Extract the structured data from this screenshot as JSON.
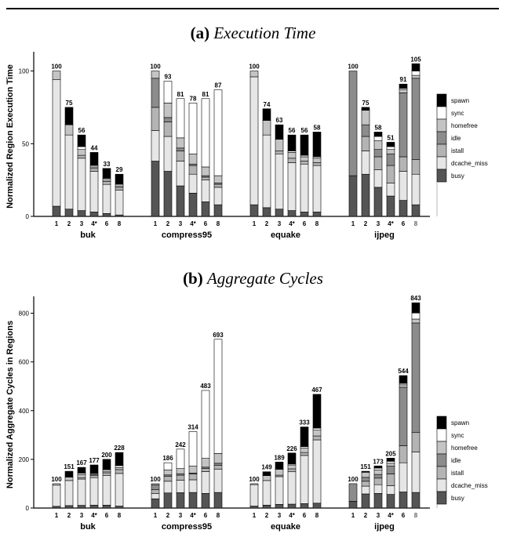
{
  "figure": {
    "panel_a": {
      "label": "(a)",
      "title": "Execution Time"
    },
    "panel_b": {
      "label": "(b)",
      "title": "Aggregate Cycles"
    }
  },
  "colors": {
    "spawn": "#000000",
    "sync": "#ffffff",
    "homefree": "#c4c4c4",
    "idle": "#8c8c8c",
    "istall": "#b4b4b4",
    "dcache_miss": "#e6e6e6",
    "busy": "#555555"
  },
  "chart_data": [
    {
      "type": "bar",
      "stacked": true,
      "title": "(a) Execution Time",
      "xlabel": "",
      "ylabel": "Normalized Region Execution Time",
      "ylim": [
        0,
        110
      ],
      "yticks": [
        0,
        50,
        100
      ],
      "legend": [
        "spawn",
        "sync",
        "homefree",
        "idle",
        "istall",
        "dcache_miss",
        "busy"
      ],
      "legend_position": "right",
      "groups": [
        {
          "name": "buk",
          "bars": [
            {
              "x": "1",
              "total": 100,
              "segments": {
                "busy": 7,
                "dcache_miss": 87,
                "istall": 0,
                "idle": 0,
                "homefree": 6,
                "sync": 0,
                "spawn": 0
              }
            },
            {
              "x": "2",
              "total": 75,
              "segments": {
                "busy": 5,
                "dcache_miss": 51,
                "istall": 0,
                "idle": 0,
                "homefree": 7,
                "sync": 0,
                "spawn": 12
              }
            },
            {
              "x": "3",
              "total": 56,
              "segments": {
                "busy": 4,
                "dcache_miss": 36,
                "istall": 2,
                "idle": 0,
                "homefree": 4,
                "sync": 2,
                "spawn": 8
              }
            },
            {
              "x": "4*",
              "total": 44,
              "segments": {
                "busy": 3,
                "dcache_miss": 28,
                "istall": 2,
                "idle": 0,
                "homefree": 1,
                "sync": 1,
                "spawn": 9
              }
            },
            {
              "x": "6",
              "total": 33,
              "segments": {
                "busy": 2,
                "dcache_miss": 20,
                "istall": 2,
                "idle": 0,
                "homefree": 1,
                "sync": 1,
                "spawn": 7
              }
            },
            {
              "x": "8",
              "total": 29,
              "segments": {
                "busy": 1,
                "dcache_miss": 17,
                "istall": 2,
                "idle": 0,
                "homefree": 1,
                "sync": 1,
                "spawn": 7
              }
            }
          ]
        },
        {
          "name": "compress95",
          "bars": [
            {
              "x": "1",
              "total": 100,
              "segments": {
                "busy": 38,
                "dcache_miss": 21,
                "istall": 16,
                "idle": 20,
                "homefree": 5,
                "sync": 0,
                "spawn": 0
              }
            },
            {
              "x": "2",
              "total": 93,
              "segments": {
                "busy": 31,
                "dcache_miss": 24,
                "istall": 10,
                "idle": 3,
                "homefree": 10,
                "sync": 15,
                "spawn": 0
              }
            },
            {
              "x": "3",
              "total": 81,
              "segments": {
                "busy": 21,
                "dcache_miss": 17,
                "istall": 7,
                "idle": 2,
                "homefree": 7,
                "sync": 27,
                "spawn": 0
              }
            },
            {
              "x": "4*",
              "total": 78,
              "segments": {
                "busy": 16,
                "dcache_miss": 13,
                "istall": 6,
                "idle": 1,
                "homefree": 7,
                "sync": 35,
                "spawn": 0
              }
            },
            {
              "x": "6",
              "total": 81,
              "segments": {
                "busy": 10,
                "dcache_miss": 15,
                "istall": 2,
                "idle": 1,
                "homefree": 6,
                "sync": 47,
                "spawn": 0
              }
            },
            {
              "x": "8",
              "total": 87,
              "segments": {
                "busy": 8,
                "dcache_miss": 12,
                "istall": 2,
                "idle": 1,
                "homefree": 5,
                "sync": 59,
                "spawn": 0
              }
            }
          ]
        },
        {
          "name": "equake",
          "bars": [
            {
              "x": "1",
              "total": 100,
              "segments": {
                "busy": 8,
                "dcache_miss": 88,
                "istall": 0,
                "idle": 0,
                "homefree": 4,
                "sync": 0,
                "spawn": 0
              }
            },
            {
              "x": "2",
              "total": 74,
              "segments": {
                "busy": 6,
                "dcache_miss": 50,
                "istall": 0,
                "idle": 0,
                "homefree": 10,
                "sync": 0,
                "spawn": 8
              }
            },
            {
              "x": "3",
              "total": 63,
              "segments": {
                "busy": 5,
                "dcache_miss": 38,
                "istall": 2,
                "idle": 0,
                "homefree": 8,
                "sync": 0,
                "spawn": 10
              }
            },
            {
              "x": "4*",
              "total": 56,
              "segments": {
                "busy": 4,
                "dcache_miss": 33,
                "istall": 3,
                "idle": 0,
                "homefree": 4,
                "sync": 1,
                "spawn": 11
              }
            },
            {
              "x": "6",
              "total": 56,
              "segments": {
                "busy": 3,
                "dcache_miss": 33,
                "istall": 2,
                "idle": 0,
                "homefree": 3,
                "sync": 1,
                "spawn": 14
              }
            },
            {
              "x": "8",
              "total": 58,
              "segments": {
                "busy": 3,
                "dcache_miss": 32,
                "istall": 2,
                "idle": 0,
                "homefree": 3,
                "sync": 1,
                "spawn": 17
              }
            }
          ]
        },
        {
          "name": "ijpeg",
          "bars": [
            {
              "x": "1",
              "total": 100,
              "segments": {
                "busy": 28,
                "dcache_miss": 0,
                "istall": 0,
                "idle": 72,
                "homefree": 0,
                "sync": 0,
                "spawn": 0
              }
            },
            {
              "x": "2",
              "total": 75,
              "segments": {
                "busy": 29,
                "dcache_miss": 16,
                "istall": 10,
                "idle": 8,
                "homefree": 10,
                "sync": 0,
                "spawn": 2
              }
            },
            {
              "x": "3",
              "total": 58,
              "segments": {
                "busy": 20,
                "dcache_miss": 12,
                "istall": 9,
                "idle": 5,
                "homefree": 6,
                "sync": 3,
                "spawn": 3
              }
            },
            {
              "x": "4*",
              "total": 51,
              "segments": {
                "busy": 14,
                "dcache_miss": 9,
                "istall": 12,
                "idle": 8,
                "homefree": 3,
                "sync": 2,
                "spawn": 3
              }
            },
            {
              "x": "6",
              "total": 91,
              "segments": {
                "busy": 11,
                "dcache_miss": 20,
                "istall": 10,
                "idle": 44,
                "homefree": 2,
                "sync": 1,
                "spawn": 3
              }
            },
            {
              "x": "8",
              "total": 105,
              "segments": {
                "busy": 8,
                "dcache_miss": 21,
                "istall": 10,
                "idle": 56,
                "homefree": 2,
                "sync": 3,
                "spawn": 5
              }
            }
          ]
        }
      ]
    },
    {
      "type": "bar",
      "stacked": true,
      "title": "(b) Aggregate Cycles",
      "xlabel": "",
      "ylabel": "Normalized Aggregate Cycles in Regions",
      "ylim": [
        0,
        850
      ],
      "yticks": [
        0,
        200,
        400,
        600,
        800
      ],
      "legend": [
        "spawn",
        "sync",
        "homefree",
        "idle",
        "istall",
        "dcache_miss",
        "busy"
      ],
      "legend_position": "right",
      "groups": [
        {
          "name": "buk",
          "bars": [
            {
              "x": "1",
              "total": 100,
              "segments": {
                "busy": 7,
                "dcache_miss": 87,
                "istall": 0,
                "idle": 0,
                "homefree": 6,
                "sync": 0,
                "spawn": 0
              }
            },
            {
              "x": "2",
              "total": 151,
              "segments": {
                "busy": 10,
                "dcache_miss": 103,
                "istall": 0,
                "idle": 0,
                "homefree": 14,
                "sync": 0,
                "spawn": 24
              }
            },
            {
              "x": "3",
              "total": 167,
              "segments": {
                "busy": 11,
                "dcache_miss": 108,
                "istall": 6,
                "idle": 0,
                "homefree": 12,
                "sync": 6,
                "spawn": 24
              }
            },
            {
              "x": "4*",
              "total": 177,
              "segments": {
                "busy": 12,
                "dcache_miss": 113,
                "istall": 8,
                "idle": 0,
                "homefree": 4,
                "sync": 4,
                "spawn": 36
              }
            },
            {
              "x": "6",
              "total": 200,
              "segments": {
                "busy": 12,
                "dcache_miss": 121,
                "istall": 12,
                "idle": 0,
                "homefree": 6,
                "sync": 6,
                "spawn": 43
              }
            },
            {
              "x": "8",
              "total": 228,
              "segments": {
                "busy": 8,
                "dcache_miss": 134,
                "istall": 16,
                "idle": 0,
                "homefree": 8,
                "sync": 8,
                "spawn": 54
              }
            }
          ]
        },
        {
          "name": "compress95",
          "bars": [
            {
              "x": "1",
              "total": 100,
              "segments": {
                "busy": 38,
                "dcache_miss": 21,
                "istall": 16,
                "idle": 20,
                "homefree": 5,
                "sync": 0,
                "spawn": 0
              }
            },
            {
              "x": "2",
              "total": 186,
              "segments": {
                "busy": 62,
                "dcache_miss": 48,
                "istall": 20,
                "idle": 6,
                "homefree": 20,
                "sync": 30,
                "spawn": 0
              }
            },
            {
              "x": "3",
              "total": 242,
              "segments": {
                "busy": 63,
                "dcache_miss": 51,
                "istall": 21,
                "idle": 6,
                "homefree": 21,
                "sync": 80,
                "spawn": 0
              }
            },
            {
              "x": "4*",
              "total": 314,
              "segments": {
                "busy": 64,
                "dcache_miss": 52,
                "istall": 24,
                "idle": 4,
                "homefree": 28,
                "sync": 142,
                "spawn": 0
              }
            },
            {
              "x": "6",
              "total": 483,
              "segments": {
                "busy": 60,
                "dcache_miss": 90,
                "istall": 12,
                "idle": 6,
                "homefree": 36,
                "sync": 279,
                "spawn": 0
              }
            },
            {
              "x": "8",
              "total": 693,
              "segments": {
                "busy": 64,
                "dcache_miss": 96,
                "istall": 16,
                "idle": 8,
                "homefree": 40,
                "sync": 469,
                "spawn": 0
              }
            }
          ]
        },
        {
          "name": "equake",
          "bars": [
            {
              "x": "1",
              "total": 100,
              "segments": {
                "busy": 8,
                "dcache_miss": 88,
                "istall": 0,
                "idle": 0,
                "homefree": 4,
                "sync": 0,
                "spawn": 0
              }
            },
            {
              "x": "2",
              "total": 149,
              "segments": {
                "busy": 12,
                "dcache_miss": 101,
                "istall": 0,
                "idle": 0,
                "homefree": 20,
                "sync": 0,
                "spawn": 16
              }
            },
            {
              "x": "3",
              "total": 189,
              "segments": {
                "busy": 15,
                "dcache_miss": 114,
                "istall": 6,
                "idle": 0,
                "homefree": 24,
                "sync": 0,
                "spawn": 30
              }
            },
            {
              "x": "4*",
              "total": 226,
              "segments": {
                "busy": 16,
                "dcache_miss": 133,
                "istall": 12,
                "idle": 0,
                "homefree": 16,
                "sync": 4,
                "spawn": 45
              }
            },
            {
              "x": "6",
              "total": 333,
              "segments": {
                "busy": 18,
                "dcache_miss": 198,
                "istall": 12,
                "idle": 0,
                "homefree": 18,
                "sync": 6,
                "spawn": 81
              }
            },
            {
              "x": "8",
              "total": 467,
              "segments": {
                "busy": 20,
                "dcache_miss": 260,
                "istall": 16,
                "idle": 0,
                "homefree": 24,
                "sync": 8,
                "spawn": 139
              }
            }
          ]
        },
        {
          "name": "ijpeg",
          "bars": [
            {
              "x": "1",
              "total": 100,
              "segments": {
                "busy": 28,
                "dcache_miss": 0,
                "istall": 0,
                "idle": 72,
                "homefree": 0,
                "sync": 0,
                "spawn": 0
              }
            },
            {
              "x": "2",
              "total": 151,
              "segments": {
                "busy": 58,
                "dcache_miss": 32,
                "istall": 20,
                "idle": 16,
                "homefree": 21,
                "sync": 0,
                "spawn": 4
              }
            },
            {
              "x": "3",
              "total": 173,
              "segments": {
                "busy": 60,
                "dcache_miss": 36,
                "istall": 27,
                "idle": 15,
                "homefree": 18,
                "sync": 8,
                "spawn": 9
              }
            },
            {
              "x": "4*",
              "total": 205,
              "segments": {
                "busy": 56,
                "dcache_miss": 36,
                "istall": 48,
                "idle": 32,
                "homefree": 12,
                "sync": 8,
                "spawn": 13
              }
            },
            {
              "x": "6",
              "total": 544,
              "segments": {
                "busy": 66,
                "dcache_miss": 120,
                "istall": 70,
                "idle": 240,
                "homefree": 10,
                "sync": 6,
                "spawn": 32
              }
            },
            {
              "x": "8",
              "total": 843,
              "segments": {
                "busy": 64,
                "dcache_miss": 166,
                "istall": 80,
                "idle": 450,
                "homefree": 16,
                "sync": 25,
                "spawn": 42
              }
            }
          ]
        }
      ]
    }
  ]
}
